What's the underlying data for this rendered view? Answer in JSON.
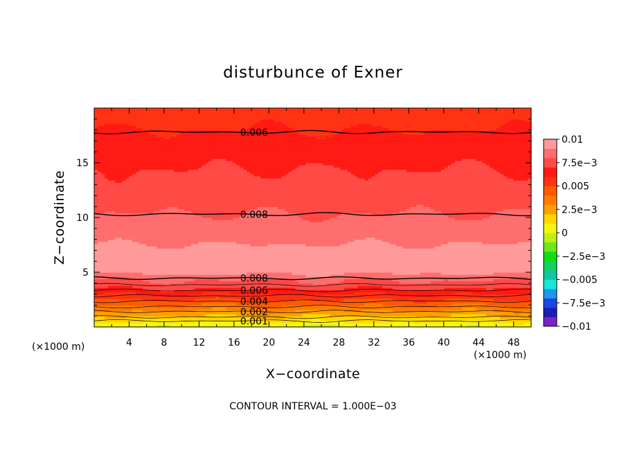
{
  "chart_data": {
    "type": "heatmap",
    "title": "disturbunce of Exner",
    "xlabel": "X−coordinate",
    "ylabel": "Z−coordinate",
    "x_unit": "(×1000 m)",
    "z_unit": "(×1000 m)",
    "xlim": [
      0,
      50
    ],
    "ylim": [
      0,
      20
    ],
    "x_ticks": [
      4,
      8,
      12,
      16,
      20,
      24,
      28,
      32,
      36,
      40,
      44,
      48
    ],
    "y_ticks": [
      5,
      10,
      15
    ],
    "contour_interval_text": "CONTOUR INTERVAL = 1.000E−03",
    "colorbar": {
      "vmin": -0.01,
      "vmax": 0.01,
      "labels": [
        "0.01",
        "7.5e−3",
        "0.005",
        "2.5e−3",
        "0",
        "−2.5e−3",
        "−0.005",
        "−7.5e−3",
        "−0.01"
      ]
    },
    "contour_labels": [
      {
        "text": "0.006",
        "x": 18.3,
        "z": 17.8
      },
      {
        "text": "0.008",
        "x": 18.3,
        "z": 10.3
      },
      {
        "text": "0.008",
        "x": 18.3,
        "z": 4.45
      },
      {
        "text": "0.006",
        "x": 18.3,
        "z": 3.35
      },
      {
        "text": "0.004",
        "x": 18.3,
        "z": 2.35
      },
      {
        "text": "0.002",
        "x": 18.3,
        "z": 1.4
      },
      {
        "text": "0.001",
        "x": 18.3,
        "z": 0.55
      }
    ],
    "field_profile_z": [
      0,
      0.5,
      1.0,
      1.5,
      2.0,
      2.5,
      3.0,
      3.5,
      4.0,
      4.3,
      5.0,
      6.0,
      7.0,
      8.0,
      10.0,
      12.0,
      14.0,
      16.0,
      18.0,
      20.0
    ],
    "field_profile_value": [
      0.0,
      0.001,
      0.002,
      0.003,
      0.004,
      0.005,
      0.006,
      0.007,
      0.0078,
      0.008,
      0.0092,
      0.0098,
      0.0093,
      0.0088,
      0.0081,
      0.0075,
      0.0071,
      0.0066,
      0.006,
      0.0055
    ]
  },
  "colors": {
    "scale": [
      "#7d22c9",
      "#1e1eb4",
      "#1c46e6",
      "#1e96f0",
      "#17e8d6",
      "#11c7a0",
      "#16d062",
      "#12dc12",
      "#6ee61e",
      "#c3ee14",
      "#f5f50f",
      "#ffd700",
      "#ff9f00",
      "#ff7b00",
      "#ff5a00",
      "#ff3314",
      "#ff1a14",
      "#ff4a46",
      "#ff6e6e",
      "#ff9a9a"
    ]
  }
}
